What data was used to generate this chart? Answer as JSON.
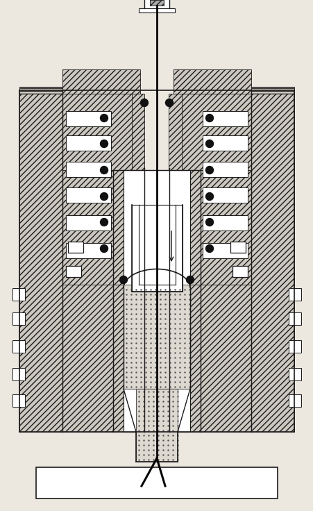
{
  "bg_color": "#ece8e0",
  "line_color": "#1a1a1a",
  "fig_width": 4.51,
  "fig_height": 7.36,
  "dpi": 100
}
